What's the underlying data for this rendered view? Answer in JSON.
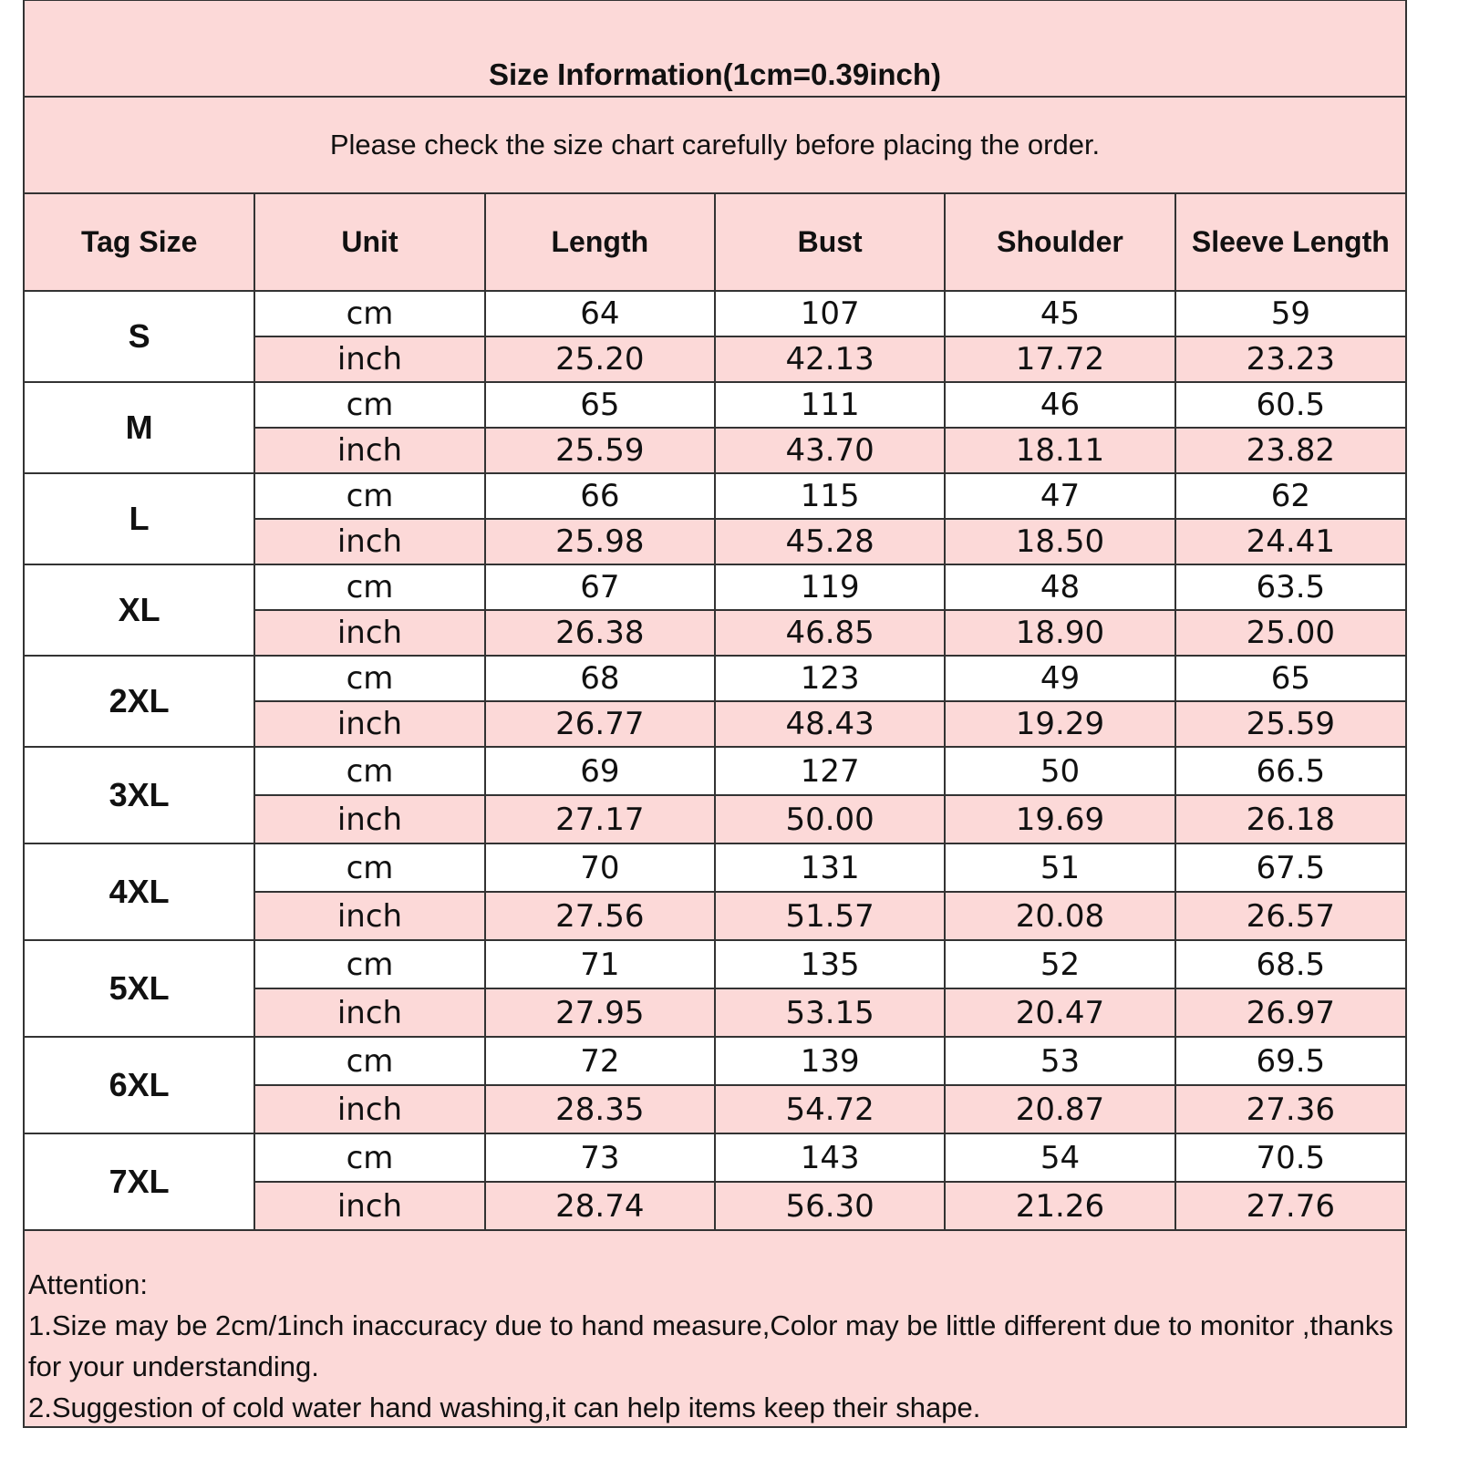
{
  "title": "Size Information(1cm=0.39inch)",
  "subtitle": "Please check the size chart carefully before placing the order.",
  "headers": [
    "Tag Size",
    "Unit",
    "Length",
    "Bust",
    "Shoulder",
    "Sleeve Length"
  ],
  "units": {
    "cm": "cm",
    "inch": "inch"
  },
  "rows": [
    {
      "size": "S",
      "cm": [
        "64",
        "107",
        "45",
        "59"
      ],
      "inch": [
        "25.20",
        "42.13",
        "17.72",
        "23.23"
      ]
    },
    {
      "size": "M",
      "cm": [
        "65",
        "111",
        "46",
        "60.5"
      ],
      "inch": [
        "25.59",
        "43.70",
        "18.11",
        "23.82"
      ]
    },
    {
      "size": "L",
      "cm": [
        "66",
        "115",
        "47",
        "62"
      ],
      "inch": [
        "25.98",
        "45.28",
        "18.50",
        "24.41"
      ]
    },
    {
      "size": "XL",
      "cm": [
        "67",
        "119",
        "48",
        "63.5"
      ],
      "inch": [
        "26.38",
        "46.85",
        "18.90",
        "25.00"
      ]
    },
    {
      "size": "2XL",
      "cm": [
        "68",
        "123",
        "49",
        "65"
      ],
      "inch": [
        "26.77",
        "48.43",
        "19.29",
        "25.59"
      ]
    },
    {
      "size": "3XL",
      "cm": [
        "69",
        "127",
        "50",
        "66.5"
      ],
      "inch": [
        "27.17",
        "50.00",
        "19.69",
        "26.18"
      ]
    },
    {
      "size": "4XL",
      "cm": [
        "70",
        "131",
        "51",
        "67.5"
      ],
      "inch": [
        "27.56",
        "51.57",
        "20.08",
        "26.57"
      ]
    },
    {
      "size": "5XL",
      "cm": [
        "71",
        "135",
        "52",
        "68.5"
      ],
      "inch": [
        "27.95",
        "53.15",
        "20.47",
        "26.97"
      ]
    },
    {
      "size": "6XL",
      "cm": [
        "72",
        "139",
        "53",
        "69.5"
      ],
      "inch": [
        "28.35",
        "54.72",
        "20.87",
        "27.36"
      ]
    },
    {
      "size": "7XL",
      "cm": [
        "73",
        "143",
        "54",
        "70.5"
      ],
      "inch": [
        "28.74",
        "56.30",
        "21.26",
        "27.76"
      ]
    }
  ],
  "notes": {
    "heading": "Attention:",
    "line1": "1.Size may be 2cm/1inch inaccuracy due to hand measure,Color may be little different due to monitor ,thanks for your understanding.",
    "line2": "2.Suggestion of cold water hand washing,it can help items keep their shape."
  },
  "colors": {
    "background": "#fcd9d8",
    "border": "#333333"
  }
}
